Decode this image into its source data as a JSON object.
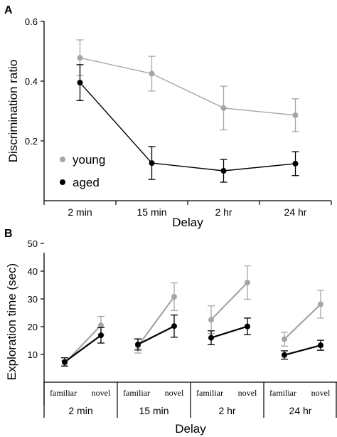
{
  "colors": {
    "young": "#a6a6a6",
    "aged": "#000000"
  },
  "chart_data": [
    {
      "panel": "A",
      "type": "line",
      "xlabel": "Delay",
      "ylabel": "Discrimination ratio",
      "ylim": [
        0,
        0.6
      ],
      "yticks": [
        0.2,
        0.4,
        0.6
      ],
      "ytick_labels": [
        "0.2",
        "0.4",
        "0.6"
      ],
      "categories": [
        "2 min",
        "15 min",
        "2 hr",
        "24 hr"
      ],
      "legend": {
        "placement": "bottom-left",
        "entries": [
          "young",
          "aged"
        ]
      },
      "series": [
        {
          "name": "young",
          "values": [
            0.478,
            0.425,
            0.31,
            0.286
          ],
          "errors": [
            0.06,
            0.058,
            0.073,
            0.055
          ]
        },
        {
          "name": "aged",
          "values": [
            0.395,
            0.126,
            0.1,
            0.124
          ],
          "errors": [
            0.06,
            0.055,
            0.038,
            0.04
          ]
        }
      ]
    },
    {
      "panel": "B",
      "type": "line",
      "xlabel": "Delay",
      "ylabel": "Exploration time (sec)",
      "ylim": [
        0,
        50
      ],
      "yticks": [
        10,
        20,
        30,
        40,
        50
      ],
      "ytick_labels": [
        "10",
        "20",
        "30",
        "40",
        "50"
      ],
      "groups": [
        "2 min",
        "15 min",
        "2 hr",
        "24 hr"
      ],
      "subcategories": [
        "familiar",
        "novel"
      ],
      "series": [
        {
          "name": "young",
          "familiar": [
            6.8,
            13.0,
            22.5,
            15.5
          ],
          "familiar_err": [
            1.0,
            2.5,
            5.0,
            2.5
          ],
          "novel": [
            20.5,
            30.8,
            35.9,
            28.1
          ],
          "novel_err": [
            3.2,
            5.0,
            6.0,
            5.0
          ]
        },
        {
          "name": "aged",
          "familiar": [
            7.3,
            13.6,
            16.0,
            9.8
          ],
          "familiar_err": [
            1.5,
            2.0,
            2.5,
            1.5
          ],
          "novel": [
            16.9,
            20.2,
            20.1,
            13.3
          ],
          "novel_err": [
            2.8,
            4.0,
            3.0,
            1.8
          ]
        }
      ]
    }
  ]
}
